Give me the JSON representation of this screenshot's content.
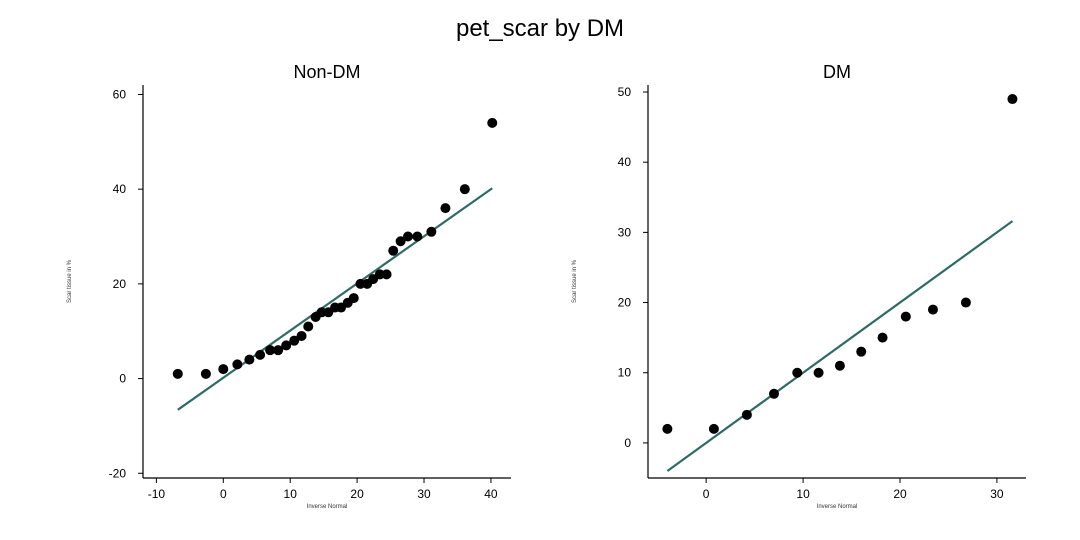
{
  "title": "pet_scar by DM",
  "colors": {
    "points": "#000000",
    "fit_line": "#2e6b63",
    "axis": "#000000"
  },
  "chart_data": [
    {
      "type": "scatter",
      "title": "Non-DM",
      "xlabel": "Inverse Normal",
      "ylabel": "Scar tissue in %",
      "xlim": [
        -12,
        43
      ],
      "ylim": [
        -21,
        62
      ],
      "xticks": [
        -10,
        0,
        10,
        20,
        30,
        40
      ],
      "yticks": [
        -20,
        0,
        20,
        40,
        60
      ],
      "grid": false,
      "points": {
        "x": [
          -6.8,
          -2.6,
          0.0,
          2.1,
          3.9,
          5.5,
          7.0,
          8.2,
          9.4,
          10.6,
          11.7,
          12.7,
          13.8,
          14.7,
          15.7,
          16.7,
          17.6,
          18.6,
          19.5,
          20.5,
          21.5,
          22.4,
          23.4,
          24.4,
          25.4,
          26.5,
          27.6,
          29.0,
          31.1,
          33.2,
          36.1,
          40.2
        ],
        "y": [
          1,
          1,
          2,
          3,
          4,
          5,
          6,
          6,
          7,
          8,
          9,
          11,
          13,
          14,
          14,
          15,
          15,
          16,
          17,
          20,
          20,
          21,
          22,
          22,
          27,
          29,
          30,
          30,
          31,
          36,
          40,
          54
        ]
      },
      "fit_line": {
        "x": [
          -6.8,
          40.2
        ],
        "y": [
          -6.6,
          40.2
        ]
      }
    },
    {
      "type": "scatter",
      "title": "DM",
      "xlabel": "Inverse Normal",
      "ylabel": "Scar tissue in %",
      "xlim": [
        -6,
        33
      ],
      "ylim": [
        -5,
        51
      ],
      "xticks": [
        0,
        10,
        20,
        30
      ],
      "yticks": [
        0,
        10,
        20,
        30,
        40,
        50
      ],
      "grid": false,
      "points": {
        "x": [
          -4.0,
          0.8,
          4.2,
          7.0,
          9.4,
          11.6,
          13.8,
          16.0,
          18.2,
          20.6,
          23.4,
          26.8,
          31.6
        ],
        "y": [
          2,
          2,
          4,
          7,
          10,
          10,
          11,
          13,
          15,
          18,
          19,
          20,
          49
        ]
      },
      "fit_line": {
        "x": [
          -4.0,
          31.6
        ],
        "y": [
          -4.0,
          31.6
        ]
      }
    }
  ]
}
